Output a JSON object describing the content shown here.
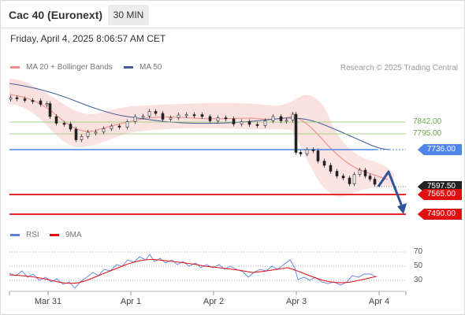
{
  "header": {
    "title": "Cac 40 (Euronext)",
    "timeframe": "30 MIN"
  },
  "datetime": "Friday, April 4, 2025 8:06:57 AM CET",
  "legend": {
    "ma20": {
      "label": "MA 20 + Bollinger Bands",
      "color": "#f08a84"
    },
    "ma50": {
      "label": "MA 50",
      "color": "#3f5f99"
    },
    "credit": "Research © 2025 Trading Central"
  },
  "levels": [
    {
      "value": "7842.00",
      "color": "#8cc86a",
      "kind": "resistance"
    },
    {
      "value": "7795.00",
      "color": "#8cc86a",
      "kind": "resistance"
    },
    {
      "value": "7736.00",
      "color": "#4f86e8",
      "kind": "pivot"
    },
    {
      "value": "7597.50",
      "color": "#222222",
      "kind": "last-price"
    },
    {
      "value": "7565.00",
      "color": "#e01010",
      "kind": "support"
    },
    {
      "value": "7490.00",
      "color": "#e01010",
      "kind": "support"
    }
  ],
  "rsi": {
    "legend": {
      "rsi": "RSI",
      "ma": "9MA",
      "rsi_color": "#5b7ee0",
      "ma_color": "#e01010"
    },
    "ticks": [
      "70",
      "50",
      "30"
    ]
  },
  "xaxis": {
    "labels": [
      "Mar 31",
      "Apr 1",
      "Apr 2",
      "Apr 3",
      "Apr 4"
    ]
  }
}
